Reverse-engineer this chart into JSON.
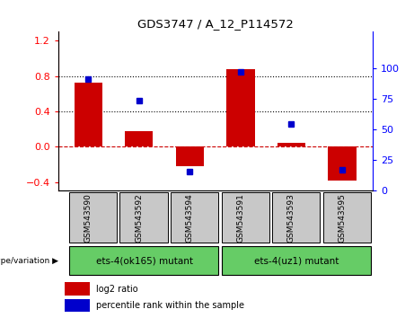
{
  "title": "GDS3747 / A_12_P114572",
  "samples": [
    "GSM543590",
    "GSM543592",
    "GSM543594",
    "GSM543591",
    "GSM543593",
    "GSM543595"
  ],
  "log2_ratio": [
    0.72,
    0.18,
    -0.22,
    0.88,
    0.04,
    -0.38
  ],
  "percentile_rank": [
    91,
    74,
    16,
    97,
    55,
    17
  ],
  "group1_label": "ets-4(ok165) mutant",
  "group2_label": "ets-4(uz1) mutant",
  "group1_indices": [
    0,
    1,
    2
  ],
  "group2_indices": [
    3,
    4,
    5
  ],
  "bar_color": "#cc0000",
  "dot_color": "#0000cc",
  "ylim_left": [
    -0.5,
    1.3
  ],
  "ylim_right": [
    0,
    130
  ],
  "yticks_left": [
    -0.4,
    0.0,
    0.4,
    0.8,
    1.2
  ],
  "yticks_right": [
    0,
    25,
    50,
    75,
    100
  ],
  "hline_y": [
    0.4,
    0.8
  ],
  "dashed_zero_color": "#cc0000",
  "bg_sample": "#c8c8c8",
  "bg_genotype": "#66cc66",
  "legend_bar_label": "log2 ratio",
  "legend_dot_label": "percentile rank within the sample",
  "bar_width": 0.55,
  "group_label_header": "genotype/variation"
}
